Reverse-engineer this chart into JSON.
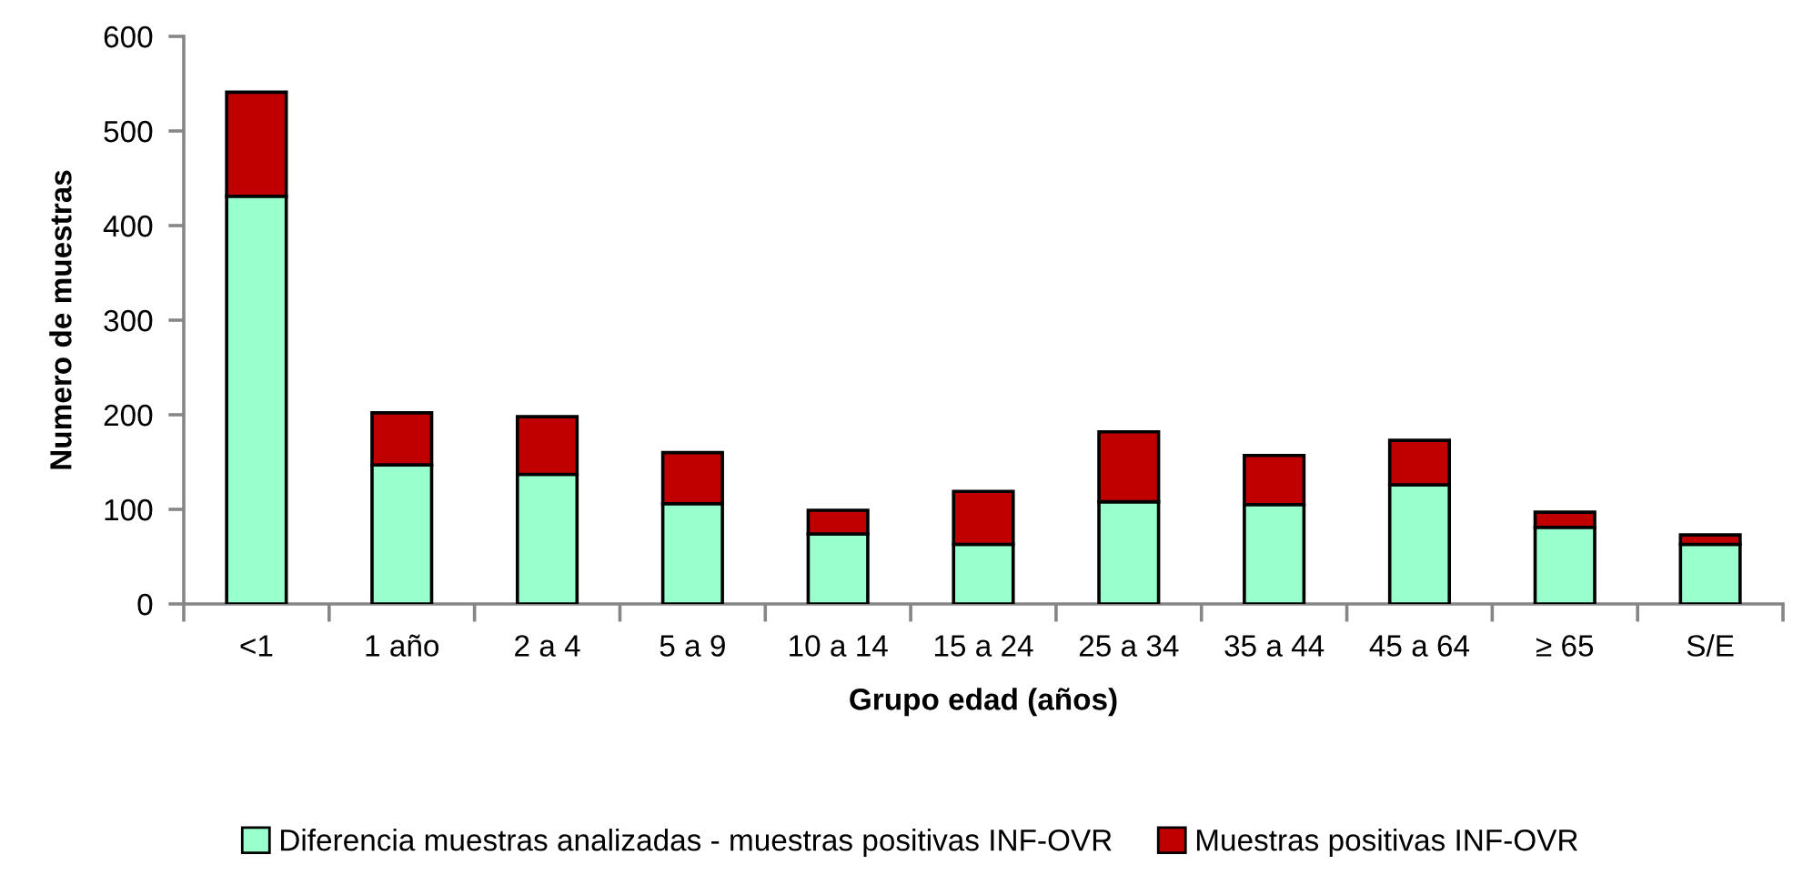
{
  "chart_data": {
    "type": "bar",
    "stacked": true,
    "xlabel": "Grupo edad (años)",
    "ylabel": "Numero de muestras",
    "categories": [
      "<1",
      "1 año",
      "2 a 4",
      "5 a 9",
      "10 a 14",
      "15 a 24",
      "25 a 34",
      "35 a 44",
      "45 a 64",
      "≥ 65",
      "S/E"
    ],
    "series": [
      {
        "name": "Diferencia muestras analizadas - muestras positivas INF-OVR",
        "color": "#99ffcc",
        "values": [
          431,
          147,
          137,
          106,
          74,
          63,
          108,
          105,
          126,
          81,
          63
        ]
      },
      {
        "name": "Muestras positivas INF-OVR",
        "color": "#c00000",
        "values": [
          110,
          55,
          61,
          54,
          25,
          56,
          74,
          52,
          47,
          16,
          10
        ]
      }
    ],
    "ylim": [
      0,
      600
    ],
    "yticks": [
      0,
      100,
      200,
      300,
      400,
      500,
      600
    ],
    "grid": false,
    "legend": "bottom"
  }
}
